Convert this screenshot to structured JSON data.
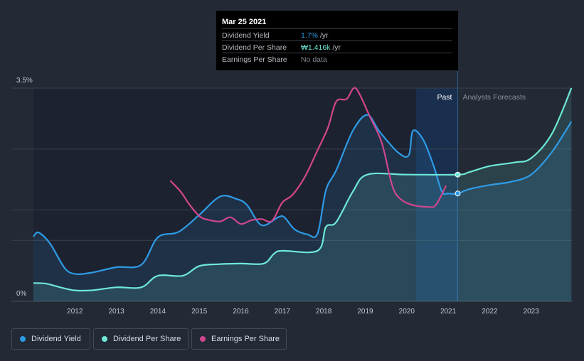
{
  "tooltip": {
    "date": "Mar 25 2021",
    "rows": [
      {
        "label": "Dividend Yield",
        "value": "1.7%",
        "suffix": " /yr",
        "color": "#2e9be6"
      },
      {
        "label": "Dividend Per Share",
        "value": "₩1.416k",
        "suffix": " /yr",
        "color": "#6ee8d7"
      },
      {
        "label": "Earnings Per Share",
        "value": "No data",
        "suffix": "",
        "color": "#7d838c"
      }
    ]
  },
  "region_labels": {
    "past": "Past",
    "forecast": "Analysts Forecasts"
  },
  "legend": [
    {
      "label": "Dividend Yield",
      "color": "#2e9be6"
    },
    {
      "label": "Dividend Per Share",
      "color": "#6ee8d7"
    },
    {
      "label": "Earnings Per Share",
      "color": "#d0468c"
    }
  ],
  "colors": {
    "background": "#232a36",
    "past_band": "#1d2230",
    "highlight": "#1a2f4d",
    "grid": "#3a414d"
  },
  "chart_data": {
    "type": "line",
    "title": "",
    "xlabel": "",
    "ylabel": "",
    "x_ticks": [
      "2012",
      "2013",
      "2014",
      "2015",
      "2016",
      "2017",
      "2018",
      "2019",
      "2020",
      "2021",
      "2022",
      "2023"
    ],
    "xlim": [
      2011.0,
      2024.0
    ],
    "ylim": [
      0,
      3.5
    ],
    "y_tick_labels": [
      {
        "value": 3.5,
        "label": "3.5%"
      },
      {
        "value": 0,
        "label": "0%"
      }
    ],
    "past_forecast_split": 2021.23,
    "highlight_range": [
      2020.23,
      2021.23
    ],
    "series": [
      {
        "name": "Dividend Yield",
        "units": "%",
        "color": "#2e9be6",
        "area": true,
        "points": [
          [
            2011.0,
            1.06
          ],
          [
            2011.12,
            1.13
          ],
          [
            2011.4,
            0.95
          ],
          [
            2011.75,
            0.55
          ],
          [
            2012.0,
            0.45
          ],
          [
            2012.4,
            0.47
          ],
          [
            2013.0,
            0.56
          ],
          [
            2013.6,
            0.6
          ],
          [
            2014.0,
            1.05
          ],
          [
            2014.5,
            1.14
          ],
          [
            2015.0,
            1.42
          ],
          [
            2015.5,
            1.72
          ],
          [
            2015.9,
            1.68
          ],
          [
            2016.15,
            1.58
          ],
          [
            2016.5,
            1.25
          ],
          [
            2016.9,
            1.38
          ],
          [
            2017.05,
            1.38
          ],
          [
            2017.3,
            1.18
          ],
          [
            2017.6,
            1.1
          ],
          [
            2017.85,
            1.11
          ],
          [
            2018.05,
            1.82
          ],
          [
            2018.3,
            2.15
          ],
          [
            2018.7,
            2.8
          ],
          [
            2019.05,
            3.06
          ],
          [
            2019.35,
            2.78
          ],
          [
            2019.8,
            2.44
          ],
          [
            2020.05,
            2.4
          ],
          [
            2020.15,
            2.8
          ],
          [
            2020.4,
            2.65
          ],
          [
            2020.65,
            2.22
          ],
          [
            2020.85,
            1.8
          ],
          [
            2021.0,
            1.77
          ],
          [
            2021.23,
            1.77
          ],
          [
            2021.5,
            1.84
          ],
          [
            2022.0,
            1.91
          ],
          [
            2022.5,
            1.96
          ],
          [
            2023.0,
            2.08
          ],
          [
            2023.5,
            2.45
          ],
          [
            2023.97,
            2.95
          ]
        ]
      },
      {
        "name": "Dividend Per Share",
        "units": "% axis scale",
        "color": "#6ee8d7",
        "area": true,
        "points": [
          [
            2011.0,
            0.3
          ],
          [
            2011.3,
            0.29
          ],
          [
            2011.7,
            0.22
          ],
          [
            2012.0,
            0.18
          ],
          [
            2012.4,
            0.18
          ],
          [
            2013.0,
            0.23
          ],
          [
            2013.6,
            0.23
          ],
          [
            2014.0,
            0.42
          ],
          [
            2014.6,
            0.42
          ],
          [
            2015.0,
            0.58
          ],
          [
            2015.5,
            0.61
          ],
          [
            2016.0,
            0.62
          ],
          [
            2016.55,
            0.62
          ],
          [
            2016.8,
            0.78
          ],
          [
            2017.0,
            0.83
          ],
          [
            2017.85,
            0.83
          ],
          [
            2018.05,
            1.22
          ],
          [
            2018.3,
            1.3
          ],
          [
            2018.7,
            1.8
          ],
          [
            2019.05,
            2.08
          ],
          [
            2020.0,
            2.08
          ],
          [
            2021.23,
            2.08
          ],
          [
            2021.5,
            2.12
          ],
          [
            2022.0,
            2.22
          ],
          [
            2022.6,
            2.28
          ],
          [
            2023.0,
            2.35
          ],
          [
            2023.5,
            2.75
          ],
          [
            2023.97,
            3.5
          ]
        ]
      },
      {
        "name": "Earnings Per Share",
        "units": "% axis scale",
        "color": "#d0468c",
        "area": false,
        "points": [
          [
            2014.3,
            1.98
          ],
          [
            2014.55,
            1.8
          ],
          [
            2014.75,
            1.6
          ],
          [
            2015.0,
            1.4
          ],
          [
            2015.2,
            1.34
          ],
          [
            2015.5,
            1.31
          ],
          [
            2015.75,
            1.38
          ],
          [
            2016.0,
            1.27
          ],
          [
            2016.25,
            1.33
          ],
          [
            2016.5,
            1.35
          ],
          [
            2016.75,
            1.32
          ],
          [
            2017.0,
            1.62
          ],
          [
            2017.25,
            1.75
          ],
          [
            2017.55,
            2.05
          ],
          [
            2017.85,
            2.48
          ],
          [
            2018.1,
            2.85
          ],
          [
            2018.3,
            3.28
          ],
          [
            2018.55,
            3.32
          ],
          [
            2018.72,
            3.5
          ],
          [
            2018.85,
            3.42
          ],
          [
            2019.1,
            3.05
          ],
          [
            2019.4,
            2.6
          ],
          [
            2019.65,
            1.9
          ],
          [
            2019.85,
            1.68
          ],
          [
            2020.15,
            1.58
          ],
          [
            2020.5,
            1.55
          ],
          [
            2020.7,
            1.58
          ],
          [
            2020.95,
            1.9
          ]
        ]
      }
    ]
  }
}
